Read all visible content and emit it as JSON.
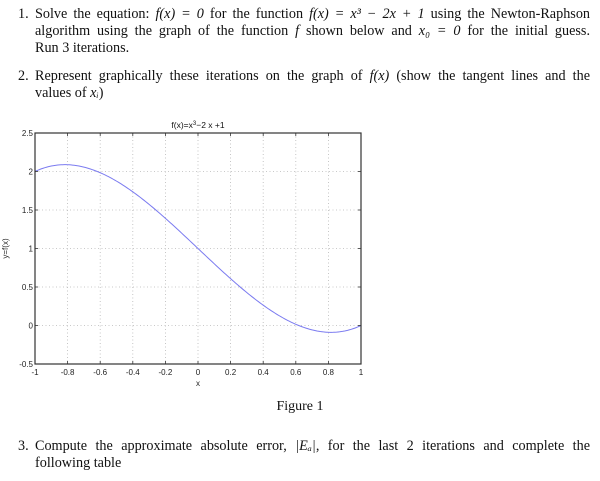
{
  "problems": [
    {
      "number": "1.",
      "lines": [
        [
          "Solve the equation: ",
          "f(x) = 0",
          " for the function ",
          "f(x) = x³ − 2x + 1",
          " using the Newton-Raphson"
        ],
        [
          "algorithm using the graph of the function ",
          "f",
          " shown below and ",
          "x₀ = 0",
          " for the initial guess."
        ],
        [
          "Run 3 iterations."
        ]
      ]
    },
    {
      "number": "2.",
      "lines": [
        [
          "Represent graphically these iterations on the graph of ",
          "f(x)",
          " (show the tangent lines and the"
        ],
        [
          "values of ",
          "xᵢ",
          ")"
        ]
      ]
    },
    {
      "number": "3.",
      "lines": [
        [
          "Compute the approximate absolute error, ",
          "|Eₐ|",
          ", for the last 2 iterations and complete the"
        ],
        [
          "following table"
        ]
      ]
    }
  ],
  "figure": {
    "caption": "Figure 1"
  },
  "chart_data": {
    "type": "line",
    "title": "f(x)=x³−2 x +1",
    "title_parts": {
      "base": "f(x)=x",
      "sup": "3",
      "rest": "−2 x +1"
    },
    "xlabel": "x",
    "ylabel": "y=f(x)",
    "xlim": [
      -1,
      1
    ],
    "ylim": [
      -0.5,
      2.5
    ],
    "xticks": [
      -1,
      -0.8,
      -0.6,
      -0.4,
      -0.2,
      0,
      0.2,
      0.4,
      0.6,
      0.8,
      1
    ],
    "xtick_labels": [
      "-1",
      "-0.8",
      "-0.6",
      "-0.4",
      "-0.2",
      "0",
      "0.2",
      "0.4",
      "0.6",
      "0.8",
      "1"
    ],
    "yticks": [
      -0.5,
      0,
      0.5,
      1,
      1.5,
      2,
      2.5
    ],
    "ytick_labels": [
      "-0.5",
      "0",
      "0.5",
      "1",
      "1.5",
      "2",
      "2.5"
    ],
    "grid": true,
    "series": [
      {
        "name": "f(x)",
        "color": "#7b7bf0",
        "x": [
          -1,
          -0.9,
          -0.816,
          -0.7,
          -0.6,
          -0.5,
          -0.4,
          -0.3,
          -0.2,
          -0.1,
          0,
          0.1,
          0.2,
          0.3,
          0.4,
          0.5,
          0.6,
          0.7,
          0.816,
          0.9,
          1
        ],
        "values": [
          2,
          2.071,
          2.089,
          2.057,
          1.984,
          1.875,
          1.736,
          1.573,
          1.392,
          1.199,
          1,
          0.801,
          0.608,
          0.427,
          0.264,
          0.125,
          0.016,
          -0.057,
          -0.089,
          -0.071,
          0
        ]
      }
    ]
  },
  "colors": {
    "curve": "#7b7bf0",
    "axes": "#333333",
    "grid": "#b8b8b8"
  }
}
